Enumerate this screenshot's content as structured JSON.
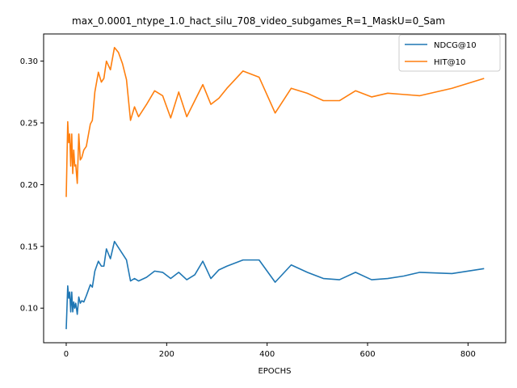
{
  "chart_data": {
    "type": "line",
    "title": "max_0.0001_ntype_1.0_hact_silu_708_video_subgames_R=1_MaskU=0_Sam",
    "xlabel": "EPOCHS",
    "ylabel": "",
    "xlim": [
      -45,
      875
    ],
    "ylim": [
      0.072,
      0.322
    ],
    "xticks": [
      0,
      200,
      400,
      600,
      800
    ],
    "yticks": [
      0.1,
      0.15,
      0.2,
      0.25,
      0.3
    ],
    "grid": false,
    "legend": "top-right",
    "series": [
      {
        "name": "NDCG@10",
        "color": "#1f77b4",
        "x": [
          0,
          3,
          5,
          7,
          9,
          11,
          13,
          15,
          17,
          19,
          22,
          25,
          28,
          31,
          35,
          40,
          48,
          52,
          57,
          64,
          70,
          75,
          80,
          88,
          96,
          104,
          120,
          128,
          136,
          144,
          160,
          176,
          192,
          208,
          224,
          240,
          256,
          272,
          288,
          304,
          320,
          352,
          384,
          416,
          448,
          480,
          512,
          544,
          576,
          608,
          640,
          672,
          704,
          768,
          832
        ],
        "y": [
          0.083,
          0.118,
          0.108,
          0.113,
          0.097,
          0.113,
          0.097,
          0.105,
          0.1,
          0.104,
          0.095,
          0.109,
          0.104,
          0.106,
          0.105,
          0.11,
          0.119,
          0.117,
          0.13,
          0.138,
          0.134,
          0.134,
          0.148,
          0.14,
          0.154,
          0.149,
          0.139,
          0.122,
          0.124,
          0.122,
          0.125,
          0.13,
          0.129,
          0.124,
          0.129,
          0.123,
          0.127,
          0.138,
          0.124,
          0.131,
          0.134,
          0.139,
          0.139,
          0.121,
          0.135,
          0.129,
          0.124,
          0.123,
          0.129,
          0.123,
          0.124,
          0.126,
          0.129,
          0.128,
          0.132
        ]
      },
      {
        "name": "HIT@10",
        "color": "#ff7f0e",
        "x": [
          0,
          3,
          5,
          7,
          9,
          11,
          13,
          15,
          17,
          19,
          22,
          25,
          28,
          31,
          35,
          40,
          48,
          52,
          57,
          64,
          70,
          75,
          80,
          88,
          96,
          104,
          112,
          120,
          128,
          136,
          144,
          160,
          176,
          192,
          208,
          224,
          240,
          256,
          272,
          288,
          304,
          320,
          352,
          384,
          416,
          448,
          480,
          512,
          544,
          576,
          608,
          640,
          672,
          704,
          768,
          832
        ],
        "y": [
          0.19,
          0.251,
          0.234,
          0.241,
          0.215,
          0.241,
          0.209,
          0.228,
          0.215,
          0.216,
          0.201,
          0.241,
          0.22,
          0.222,
          0.228,
          0.231,
          0.249,
          0.252,
          0.275,
          0.291,
          0.283,
          0.286,
          0.3,
          0.293,
          0.311,
          0.307,
          0.298,
          0.285,
          0.252,
          0.263,
          0.255,
          0.265,
          0.276,
          0.272,
          0.254,
          0.275,
          0.255,
          0.268,
          0.281,
          0.265,
          0.27,
          0.278,
          0.292,
          0.287,
          0.258,
          0.278,
          0.274,
          0.268,
          0.268,
          0.276,
          0.271,
          0.274,
          0.273,
          0.272,
          0.278,
          0.286
        ]
      }
    ]
  }
}
